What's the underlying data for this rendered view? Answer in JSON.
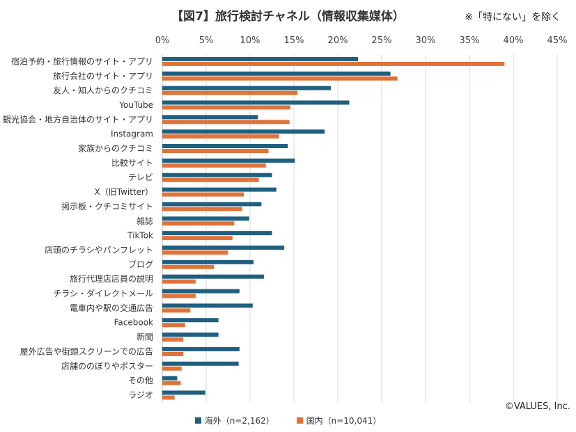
{
  "page": {
    "title": "【図7】旅行検討チャネル（情報収集媒体）",
    "note": "※「特にない」を除く",
    "copyright": "©VALUES, Inc."
  },
  "colors": {
    "overseas": "#1f5f7f",
    "domestic": "#e0733a"
  },
  "chart_data": {
    "type": "bar",
    "orientation": "horizontal",
    "title": "【図7】旅行検討チャネル（情報収集媒体）",
    "xlim": [
      0,
      45
    ],
    "xticks": [
      "0%",
      "5%",
      "10%",
      "15%",
      "20%",
      "25%",
      "30%",
      "35%",
      "40%",
      "45%"
    ],
    "grid": true,
    "legend_position": "bottom",
    "categories": [
      "宿泊予約・旅行情報のサイト・アプリ",
      "旅行会社のサイト・アプリ",
      "友人・知人からのクチコミ",
      "YouTube",
      "観光協会・地方自治体のサイト・アプリ",
      "Instagram",
      "家族からのクチコミ",
      "比較サイト",
      "テレビ",
      "X（旧Twitter）",
      "掲示板・クチコミサイト",
      "雑誌",
      "TikTok",
      "店頭のチラシやパンフレット",
      "ブログ",
      "旅行代理店店員の説明",
      "チラシ・ダイレクトメール",
      "電車内や駅の交通広告",
      "Facebook",
      "新聞",
      "屋外広告や街頭スクリーンでの広告",
      "店舗ののぼりやポスター",
      "その他",
      "ラジオ"
    ],
    "series": [
      {
        "name": "海外（n=2,162）",
        "color": "#1f5f7f",
        "values": [
          22.3,
          26.0,
          19.2,
          21.3,
          10.9,
          18.5,
          14.3,
          15.1,
          12.5,
          13.0,
          11.3,
          9.9,
          12.5,
          13.9,
          10.4,
          11.6,
          8.8,
          10.3,
          6.4,
          6.4,
          8.8,
          8.7,
          1.7,
          4.9
        ]
      },
      {
        "name": "国内（n=10,041）",
        "color": "#e0733a",
        "values": [
          39.0,
          26.8,
          15.4,
          14.6,
          14.5,
          13.3,
          12.1,
          11.8,
          11.0,
          9.3,
          9.1,
          8.2,
          8.0,
          7.5,
          5.9,
          3.8,
          3.8,
          3.2,
          2.6,
          2.4,
          2.4,
          2.2,
          2.1,
          1.4
        ]
      }
    ]
  }
}
